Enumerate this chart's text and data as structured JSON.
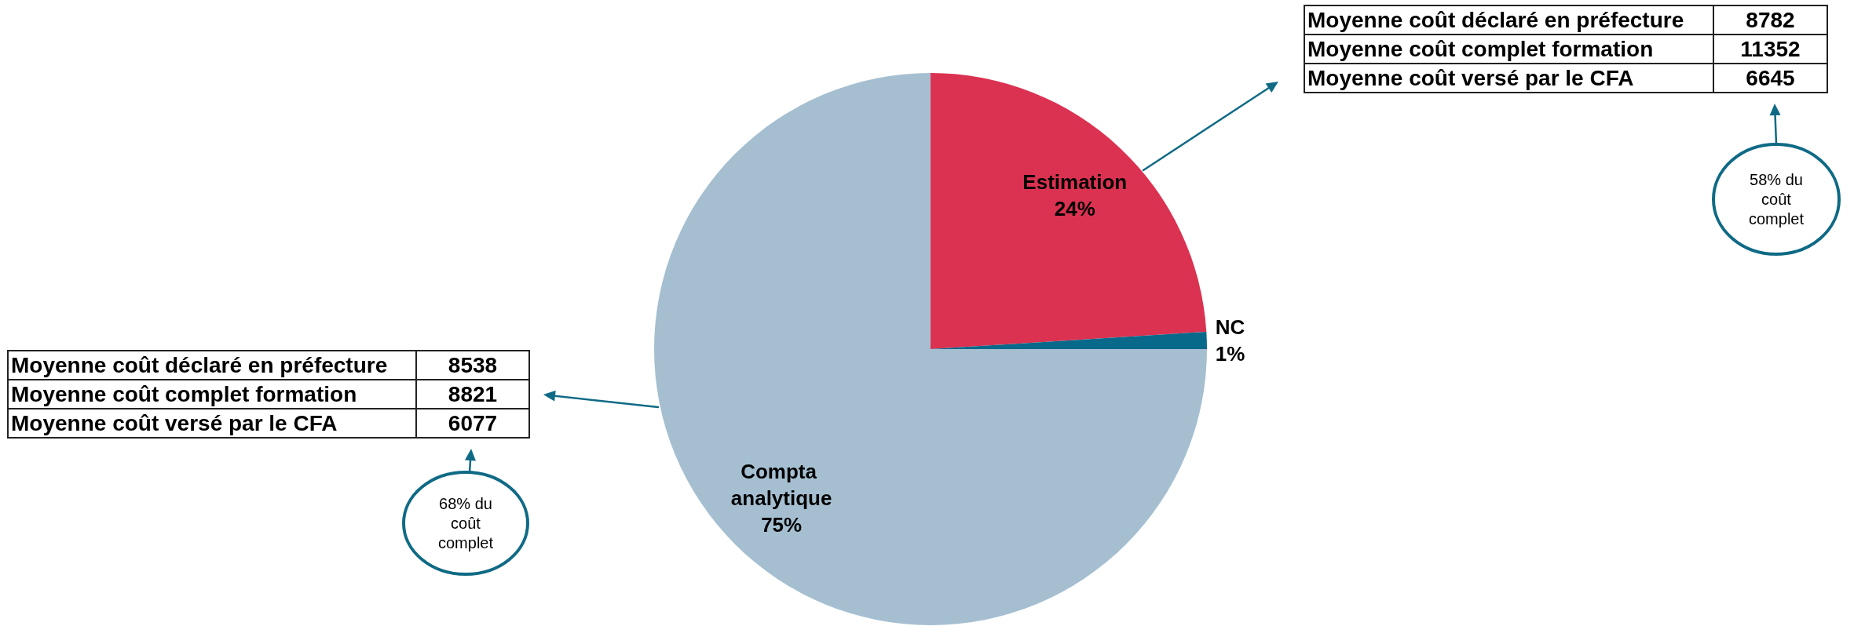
{
  "chart_data": {
    "type": "pie",
    "categories": [
      "Estimation",
      "NC",
      "Compta analytique"
    ],
    "values": [
      24,
      1,
      75
    ],
    "colors": [
      "#db3251",
      "#08698a",
      "#a5bfd1"
    ],
    "value_labels": [
      "24%",
      "1%",
      "75%"
    ],
    "annotations": [
      "Moyenne coût déclaré en préfecture",
      "8782",
      "Moyenne coût complet formation",
      "11352",
      "Moyenne coût versé par le CFA",
      "6645",
      "58% du coût complet",
      "Moyenne coût déclaré en préfecture",
      "8538",
      "Moyenne coût complet formation",
      "8821",
      "Moyenne coût versé par le CFA",
      "6077",
      "68% du coût complet"
    ]
  }
}
